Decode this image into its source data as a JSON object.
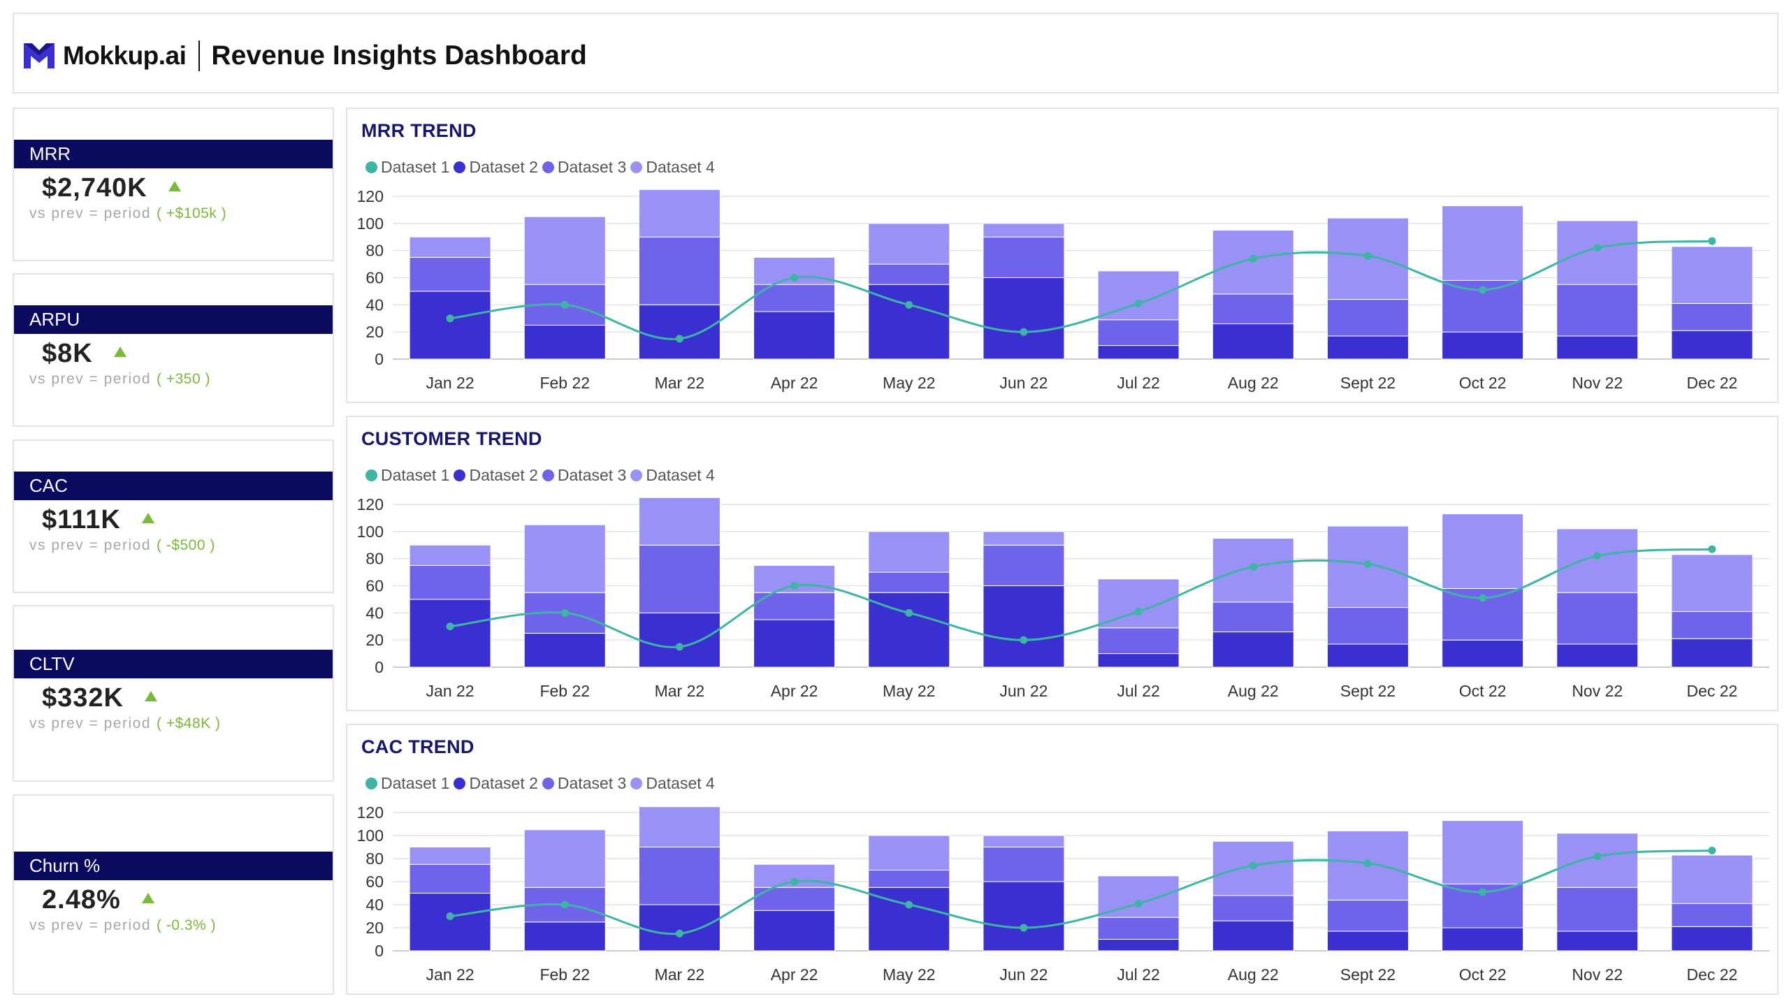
{
  "header": {
    "brand": "Mokkup.ai",
    "title": "Revenue Insights Dashboard"
  },
  "kpis": [
    {
      "label": "MRR",
      "value": "$2,740K",
      "sub_label": "vs prev = period",
      "delta": "( +$105k )"
    },
    {
      "label": "ARPU",
      "value": "$8K",
      "sub_label": "vs prev = period",
      "delta": "( +350 )"
    },
    {
      "label": "CAC",
      "value": "$111K",
      "sub_label": "vs prev = period",
      "delta": "( -$500 )"
    },
    {
      "label": "CLTV",
      "value": "$332K",
      "sub_label": "vs prev = period",
      "delta": "( +$48K )"
    },
    {
      "label": "Churn %",
      "value": "2.48%",
      "sub_label": "vs prev = period",
      "delta": "( -0.3% )"
    }
  ],
  "colors": {
    "dataset1": "#3db5a4",
    "dataset2": "#3a2fd0",
    "dataset3": "#6f63eb",
    "dataset4": "#9a91f7",
    "kpi_header": "#0a0a5e",
    "positive": "#7bb93a",
    "chart_title": "#16166e"
  },
  "chart_data": [
    {
      "type": "bar",
      "title": "MRR TREND",
      "stacked": true,
      "categories": [
        "Jan 22",
        "Feb 22",
        "Mar 22",
        "Apr 22",
        "May 22",
        "Jun 22",
        "Jul 22",
        "Aug 22",
        "Sept 22",
        "Oct 22",
        "Nov 22",
        "Dec 22"
      ],
      "ylim": [
        0,
        120
      ],
      "yticks": [
        0,
        20,
        40,
        60,
        80,
        100,
        120
      ],
      "grid": true,
      "legend_position": "top-left",
      "series": [
        {
          "name": "Dataset 1",
          "type": "line",
          "values": [
            30,
            40,
            15,
            60,
            40,
            20,
            41,
            74,
            76,
            51,
            82,
            87
          ]
        },
        {
          "name": "Dataset 2",
          "type": "bar",
          "values": [
            50,
            25,
            40,
            35,
            55,
            60,
            10,
            26,
            17,
            20,
            17,
            21
          ]
        },
        {
          "name": "Dataset 3",
          "type": "bar",
          "values": [
            25,
            30,
            50,
            20,
            15,
            30,
            19,
            22,
            27,
            38,
            38,
            20
          ]
        },
        {
          "name": "Dataset 4",
          "type": "bar",
          "values": [
            15,
            50,
            35,
            20,
            30,
            10,
            36,
            47,
            60,
            55,
            47,
            42
          ]
        }
      ]
    },
    {
      "type": "bar",
      "title": "CUSTOMER TREND",
      "stacked": true,
      "categories": [
        "Jan 22",
        "Feb 22",
        "Mar 22",
        "Apr 22",
        "May 22",
        "Jun 22",
        "Jul 22",
        "Aug 22",
        "Sept 22",
        "Oct 22",
        "Nov 22",
        "Dec 22"
      ],
      "ylim": [
        0,
        120
      ],
      "yticks": [
        0,
        20,
        40,
        60,
        80,
        100,
        120
      ],
      "grid": true,
      "legend_position": "top-left",
      "series": [
        {
          "name": "Dataset 1",
          "type": "line",
          "values": [
            30,
            40,
            15,
            60,
            40,
            20,
            41,
            74,
            76,
            51,
            82,
            87
          ]
        },
        {
          "name": "Dataset 2",
          "type": "bar",
          "values": [
            50,
            25,
            40,
            35,
            55,
            60,
            10,
            26,
            17,
            20,
            17,
            21
          ]
        },
        {
          "name": "Dataset 3",
          "type": "bar",
          "values": [
            25,
            30,
            50,
            20,
            15,
            30,
            19,
            22,
            27,
            38,
            38,
            20
          ]
        },
        {
          "name": "Dataset 4",
          "type": "bar",
          "values": [
            15,
            50,
            35,
            20,
            30,
            10,
            36,
            47,
            60,
            55,
            47,
            42
          ]
        }
      ]
    },
    {
      "type": "bar",
      "title": "CAC TREND",
      "stacked": true,
      "categories": [
        "Jan 22",
        "Feb 22",
        "Mar 22",
        "Apr 22",
        "May 22",
        "Jun 22",
        "Jul 22",
        "Aug 22",
        "Sept 22",
        "Oct 22",
        "Nov 22",
        "Dec 22"
      ],
      "ylim": [
        0,
        120
      ],
      "yticks": [
        0,
        20,
        40,
        60,
        80,
        100,
        120
      ],
      "grid": true,
      "legend_position": "top-left",
      "series": [
        {
          "name": "Dataset 1",
          "type": "line",
          "values": [
            30,
            40,
            15,
            60,
            40,
            20,
            41,
            74,
            76,
            51,
            82,
            87
          ]
        },
        {
          "name": "Dataset 2",
          "type": "bar",
          "values": [
            50,
            25,
            40,
            35,
            55,
            60,
            10,
            26,
            17,
            20,
            17,
            21
          ]
        },
        {
          "name": "Dataset 3",
          "type": "bar",
          "values": [
            25,
            30,
            50,
            20,
            15,
            30,
            19,
            22,
            27,
            38,
            38,
            20
          ]
        },
        {
          "name": "Dataset 4",
          "type": "bar",
          "values": [
            15,
            50,
            35,
            20,
            30,
            10,
            36,
            47,
            60,
            55,
            47,
            42
          ]
        }
      ]
    }
  ]
}
